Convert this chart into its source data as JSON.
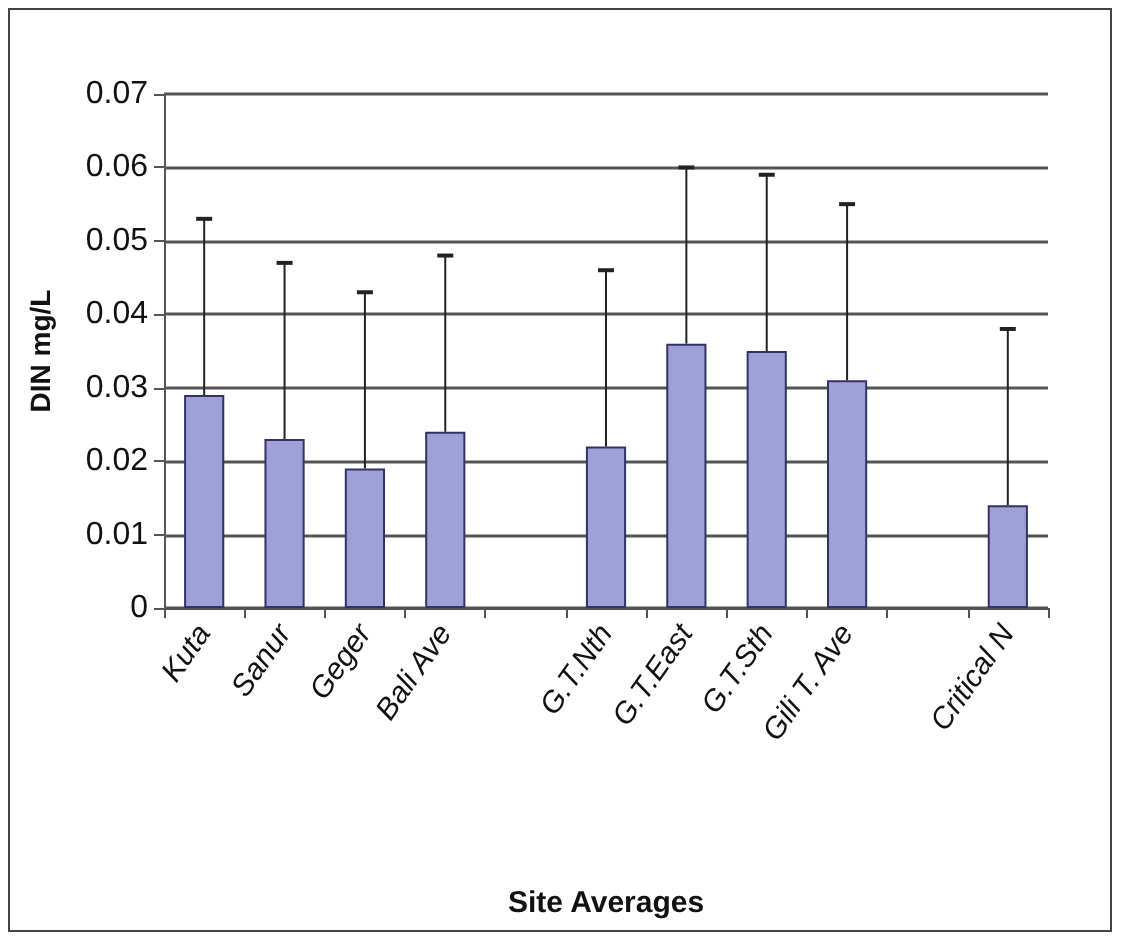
{
  "chart_data": {
    "type": "bar",
    "xlabel": "Site Averages",
    "ylabel": "DIN mg/L",
    "categories": [
      "Kuta",
      "Sanur",
      "Geger",
      "Bali Ave",
      null,
      "G.T.Nth",
      "G.T.East",
      "G.T.Sth",
      "Gili T. Ave",
      null,
      "Critical N"
    ],
    "values": [
      0.029,
      0.023,
      0.019,
      0.024,
      null,
      0.022,
      0.036,
      0.035,
      0.031,
      null,
      0.014
    ],
    "errors": [
      [
        0.029,
        0.053
      ],
      [
        0.023,
        0.047
      ],
      [
        0.019,
        0.043
      ],
      [
        0.024,
        0.048
      ],
      null,
      [
        0.022,
        0.046
      ],
      [
        0.036,
        0.06
      ],
      [
        0.035,
        0.059
      ],
      [
        0.031,
        0.055
      ],
      null,
      [
        0.014,
        0.038
      ]
    ],
    "color": "#a0a0d8",
    "ylim": [
      0,
      0.07
    ],
    "yticks": [
      0,
      0.01,
      0.02,
      0.03,
      0.04,
      0.05,
      0.06,
      0.07
    ],
    "grid": "y"
  }
}
